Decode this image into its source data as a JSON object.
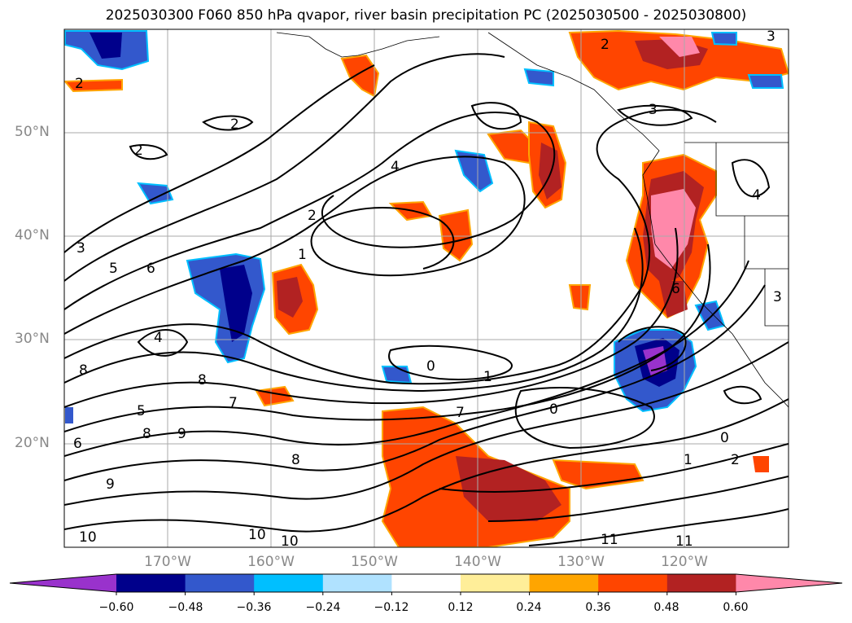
{
  "title": "2025030300 F060 850 hPa qvapor, river basin precipitation PC (2025030500 - 2025030800)",
  "lat_labels": [
    "50°N",
    "40°N",
    "30°N",
    "20°N"
  ],
  "lon_labels": [
    "170°W",
    "160°W",
    "150°W",
    "140°W",
    "130°W",
    "120°W"
  ],
  "colorbar": {
    "colors": [
      "#9932cc",
      "#00008b",
      "#3358cc",
      "#00bfff",
      "#b0e2ff",
      "#ffffff",
      "#ffee99",
      "#ffa500",
      "#ff4500",
      "#b22222",
      "#ff88aa"
    ],
    "tick_labels": [
      "−0.60",
      "−0.48",
      "−0.36",
      "−0.24",
      "−0.12",
      "0.12",
      "0.24",
      "0.36",
      "0.48",
      "0.60"
    ]
  },
  "contour_labels": [
    "2",
    "2",
    "2",
    "2",
    "3",
    "3",
    "4",
    "3",
    "2",
    "1",
    "0",
    "1",
    "0",
    "1",
    "2",
    "3",
    "4",
    "5",
    "6",
    "7",
    "8",
    "9",
    "10",
    "11",
    "5",
    "6",
    "8",
    "9",
    "10",
    "10",
    "11",
    "6",
    "7",
    "8",
    "8",
    "0",
    "4"
  ],
  "contour_label_colors": "#000000"
}
